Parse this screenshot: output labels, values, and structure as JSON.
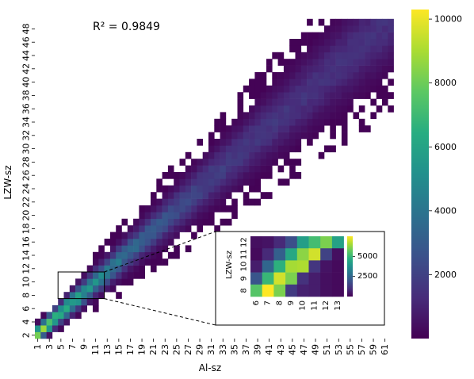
{
  "chart_data": {
    "type": "heatmap",
    "xlabel": "Al-sz",
    "ylabel": "LZW-sz",
    "annotation": "R² = 0.9849",
    "x_tick_labels": [
      "1",
      "3",
      "5",
      "7",
      "9",
      "11",
      "13",
      "15",
      "17",
      "19",
      "21",
      "23",
      "25",
      "27",
      "29",
      "31",
      "33",
      "35",
      "37",
      "39",
      "41",
      "43",
      "45",
      "47",
      "49",
      "51",
      "53",
      "55",
      "57",
      "59",
      "61"
    ],
    "y_tick_labels": [
      "2",
      "4",
      "6",
      "8",
      "10",
      "12",
      "14",
      "16",
      "18",
      "20",
      "22",
      "24",
      "26",
      "28",
      "30",
      "32",
      "34",
      "36",
      "38",
      "40",
      "42",
      "44",
      "46",
      "48"
    ],
    "x_range": [
      1,
      62
    ],
    "y_range": [
      2,
      49
    ],
    "colorbar": {
      "min": 0,
      "max": 10300,
      "ticks": [
        "2000",
        "4000",
        "6000",
        "8000",
        "10000"
      ],
      "colormap": "viridis"
    },
    "ridge": {
      "description": "counts concentrated along diagonal LZW ≈ 0.77·Al + 1.5",
      "peak_count_at_small_sizes": 10000
    },
    "highlight_box": {
      "x_range": [
        5,
        13
      ],
      "y_range": [
        8,
        12
      ]
    },
    "inset": {
      "xlabel": "",
      "ylabel": "LZW-sz",
      "x_tick_labels": [
        "6",
        "7",
        "8",
        "9",
        "10",
        "11",
        "12",
        "13"
      ],
      "y_tick_labels": [
        "8",
        "9",
        "10",
        "11",
        "12"
      ],
      "colorbar_ticks": [
        "2500",
        "5000"
      ],
      "rows_top_to_bottom_y": [
        "12",
        "11",
        "10",
        "9",
        "8"
      ],
      "grid_values": [
        [
          300,
          400,
          900,
          1800,
          4200,
          5200,
          6000,
          4300
        ],
        [
          200,
          900,
          2300,
          4500,
          6200,
          7000,
          1500,
          300
        ],
        [
          600,
          2500,
          4800,
          6500,
          6600,
          1200,
          400,
          200
        ],
        [
          2000,
          5000,
          7000,
          6000,
          1100,
          600,
          300,
          200
        ],
        [
          5500,
          7500,
          6000,
          1300,
          700,
          600,
          300,
          200
        ]
      ]
    }
  }
}
